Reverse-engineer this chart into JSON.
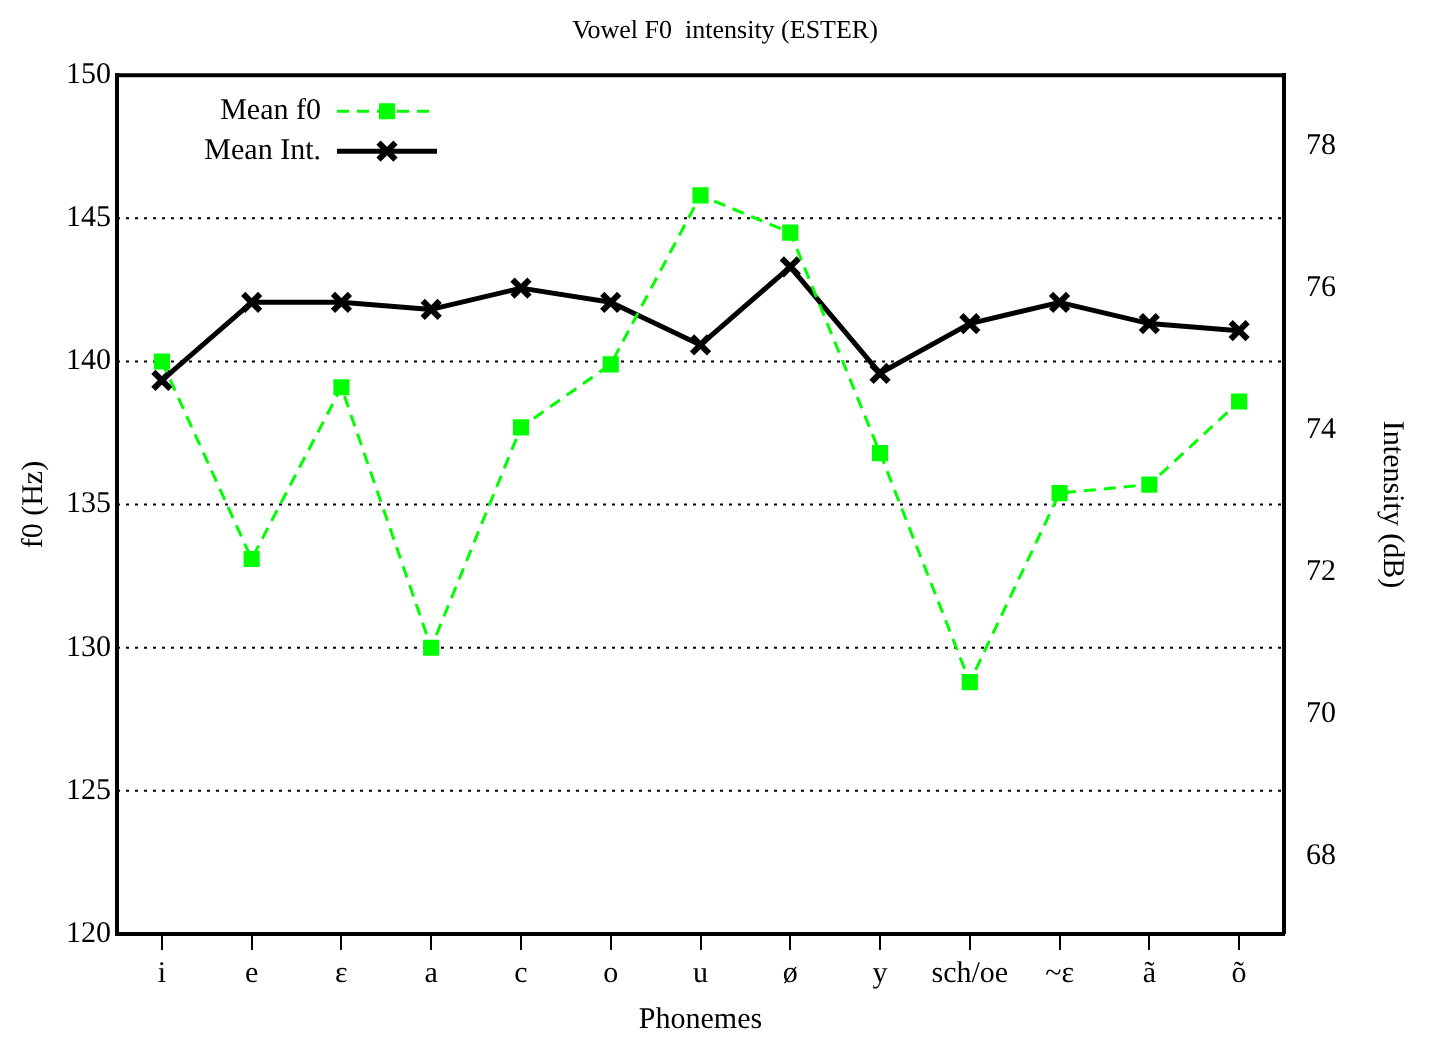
{
  "chart_data": {
    "type": "line",
    "title": "Vowel F0  intensity (ESTER)",
    "xlabel": "Phonemes",
    "ylabel": "f0 (Hz)",
    "y2label": "Intensity (dB)",
    "categories": [
      "i",
      "e",
      "ɛ",
      "a",
      "c",
      "o",
      "u",
      "ø",
      "y",
      "sch/oe",
      "~ɛ",
      "ã",
      "õ"
    ],
    "series": [
      {
        "name": "Mean f0",
        "color": "#00ff00",
        "marker": "square",
        "line_style": "dashed",
        "values": [
          140,
          133.1,
          139.1,
          130,
          137.7,
          139.9,
          145.8,
          144.5,
          136.8,
          128.8,
          135.4,
          135.7,
          138.6
        ]
      },
      {
        "name": "Mean Int.",
        "color": "#000000",
        "marker": "cross",
        "line_style": "solid",
        "axis": "y2",
        "values": [
          74.7,
          75.8,
          75.8,
          75.7,
          76.0,
          75.8,
          75.2,
          76.3,
          74.8,
          75.5,
          75.8,
          75.5,
          75.4
        ]
      }
    ],
    "ylim": [
      120,
      150
    ],
    "yticks": [
      120,
      125,
      130,
      135,
      140,
      145,
      150
    ],
    "y2lim": [
      66.9,
      79
    ],
    "y2ticks": [
      68,
      70,
      72,
      74,
      76,
      78
    ],
    "grid": "y",
    "legend": "top left"
  }
}
